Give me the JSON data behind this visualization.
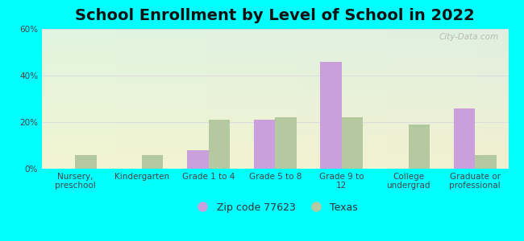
{
  "title": "School Enrollment by Level of School in 2022",
  "categories": [
    "Nursery,\npreschool",
    "Kindergarten",
    "Grade 1 to 4",
    "Grade 5 to 8",
    "Grade 9 to\n12",
    "College\nundergrad",
    "Graduate or\nprofessional"
  ],
  "zip_values": [
    0,
    0,
    8,
    21,
    46,
    0,
    26
  ],
  "texas_values": [
    6,
    6,
    21,
    22,
    22,
    19,
    6
  ],
  "zip_color": "#c9a0dc",
  "texas_color": "#b5c9a0",
  "ylim": [
    0,
    60
  ],
  "yticks": [
    0,
    20,
    40,
    60
  ],
  "ytick_labels": [
    "0%",
    "20%",
    "40%",
    "60%"
  ],
  "bg_color": "#00FFFF",
  "grid_color": "#dddddd",
  "watermark": "City-Data.com",
  "legend_zip_label": "Zip code 77623",
  "legend_texas_label": "Texas",
  "title_fontsize": 14,
  "axis_fontsize": 7.5,
  "legend_fontsize": 9,
  "bar_width": 0.32
}
